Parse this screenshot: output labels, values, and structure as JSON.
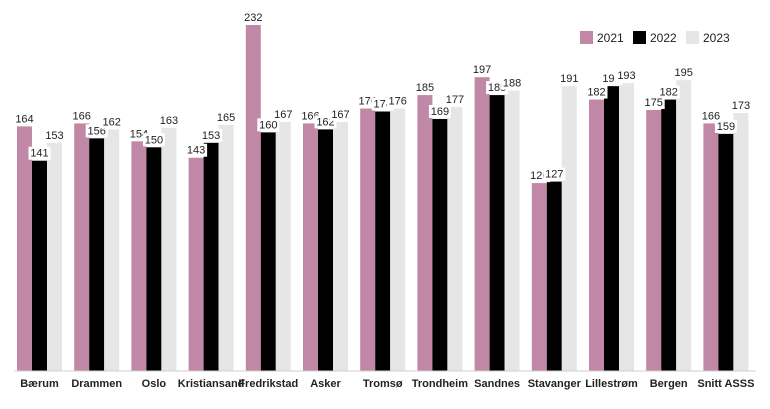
{
  "chart_data": {
    "type": "bar",
    "title": "",
    "xlabel": "",
    "ylabel": "",
    "ylim": [
      0,
      232
    ],
    "grid": false,
    "legend_position": "top-right",
    "categories": [
      "Bærum",
      "Drammen",
      "Oslo",
      "Kristiansand",
      "Fredrikstad",
      "Asker",
      "Tromsø",
      "Trondheim",
      "Sandnes",
      "Stavanger",
      "Lillestrøm",
      "Bergen",
      "Snitt ASSS"
    ],
    "series": [
      {
        "name": "2021",
        "color": "#c087a6",
        "values": [
          164,
          166,
          154,
          143,
          232,
          166,
          176,
          185,
          197,
          126,
          182,
          175,
          166
        ]
      },
      {
        "name": "2022",
        "color": "#000000",
        "values": [
          141,
          156,
          150,
          153,
          160,
          162,
          174,
          169,
          185,
          127,
          191,
          182,
          159
        ]
      },
      {
        "name": "2023",
        "color": "#e6e6e6",
        "values": [
          153,
          162,
          163,
          165,
          167,
          167,
          176,
          177,
          188,
          191,
          193,
          195,
          173
        ]
      }
    ]
  }
}
